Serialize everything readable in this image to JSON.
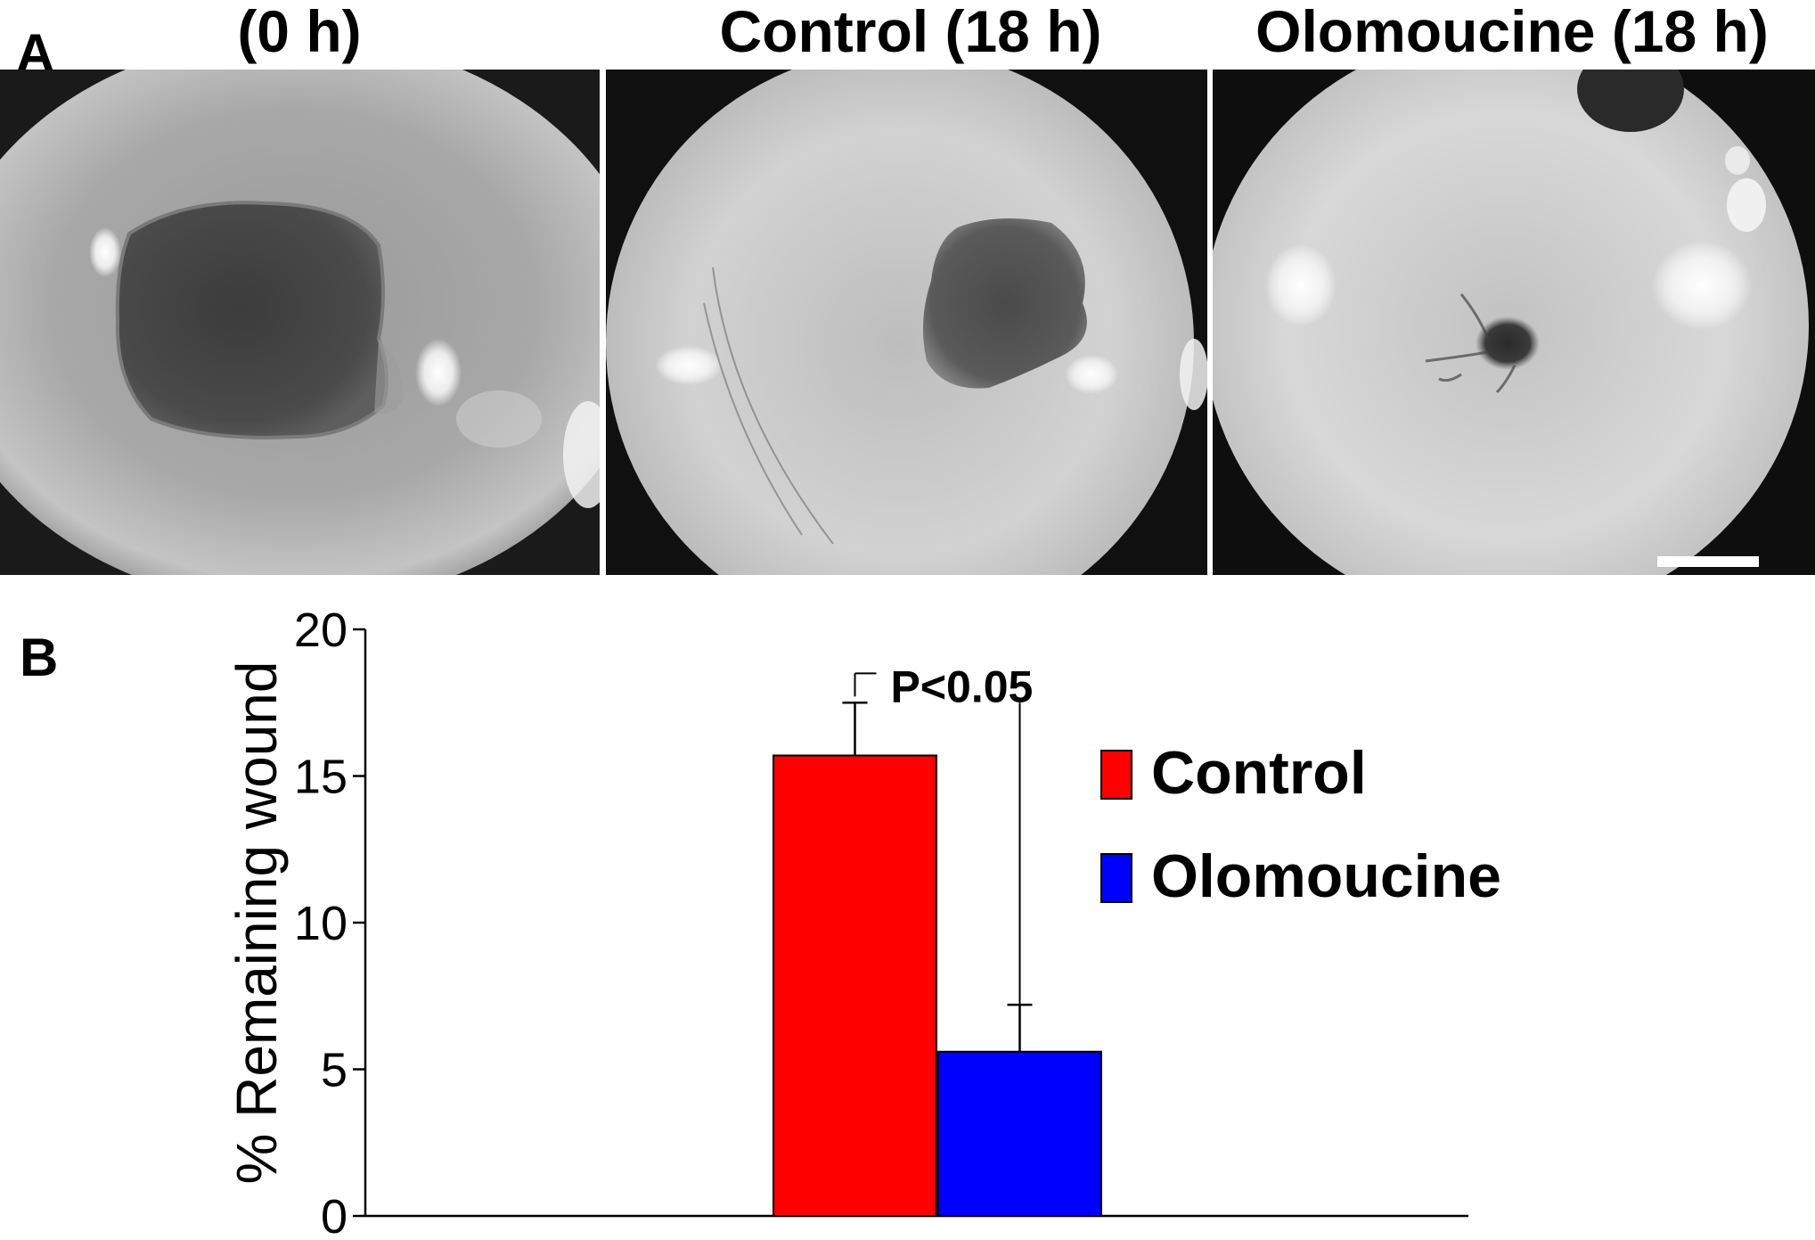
{
  "panel_a": {
    "letter": "A",
    "photos": [
      {
        "title": "(0 h)"
      },
      {
        "title": "Control (18 h)"
      },
      {
        "title": "Olomoucine (18 h)"
      }
    ]
  },
  "panel_b": {
    "letter": "B"
  },
  "chart_data": {
    "type": "bar",
    "title": "",
    "xlabel": "",
    "ylabel": "% Remaining wound",
    "ylim": [
      0,
      20
    ],
    "yticks": [
      "0",
      "5",
      "10",
      "15",
      "20"
    ],
    "grid": false,
    "legend_position": "right",
    "series": [
      {
        "name": "Control",
        "value": 15.7,
        "error": 1.8,
        "color": "#ff0000"
      },
      {
        "name": "Olomoucine",
        "value": 5.6,
        "error": 1.6,
        "color": "#0000ff"
      }
    ],
    "annotation": {
      "text": "P<0.05"
    }
  }
}
